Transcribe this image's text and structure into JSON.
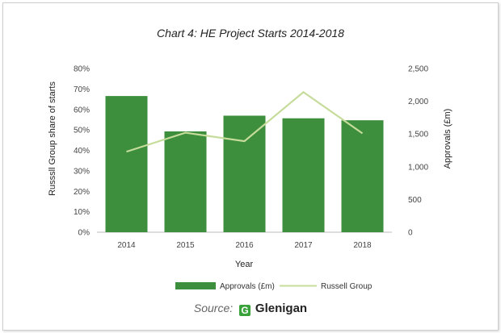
{
  "source": {
    "label": "Source:",
    "logo_text": "Glenigan"
  },
  "colors": {
    "bar": "#3d8f3d",
    "line": "#c6dc9a"
  },
  "chart_data": {
    "type": "bar",
    "title": "Chart 4: HE Project Starts 2014-2018",
    "xlabel": "Year",
    "ylabel_left": "Russsll Group share of starts",
    "ylabel_right": "Approvals (£m)",
    "categories": [
      "2014",
      "2015",
      "2016",
      "2017",
      "2018"
    ],
    "left_axis": {
      "ylim": [
        0,
        80
      ],
      "ticks": [
        "0%",
        "10%",
        "20%",
        "30%",
        "40%",
        "50%",
        "60%",
        "70%",
        "80%"
      ]
    },
    "right_axis": {
      "ylim": [
        0,
        2500
      ],
      "ticks": [
        "0",
        "500",
        "1,000",
        "1,500",
        "2,000",
        "2,500"
      ]
    },
    "series": [
      {
        "name": "Approvals (£m)",
        "type": "bar",
        "axis": "right",
        "values": [
          2080,
          1540,
          1780,
          1740,
          1710
        ]
      },
      {
        "name": "Russell Group",
        "type": "line",
        "axis": "right",
        "values": [
          1230,
          1520,
          1390,
          2140,
          1510
        ]
      }
    ],
    "grid": false,
    "legend_position": "bottom"
  }
}
